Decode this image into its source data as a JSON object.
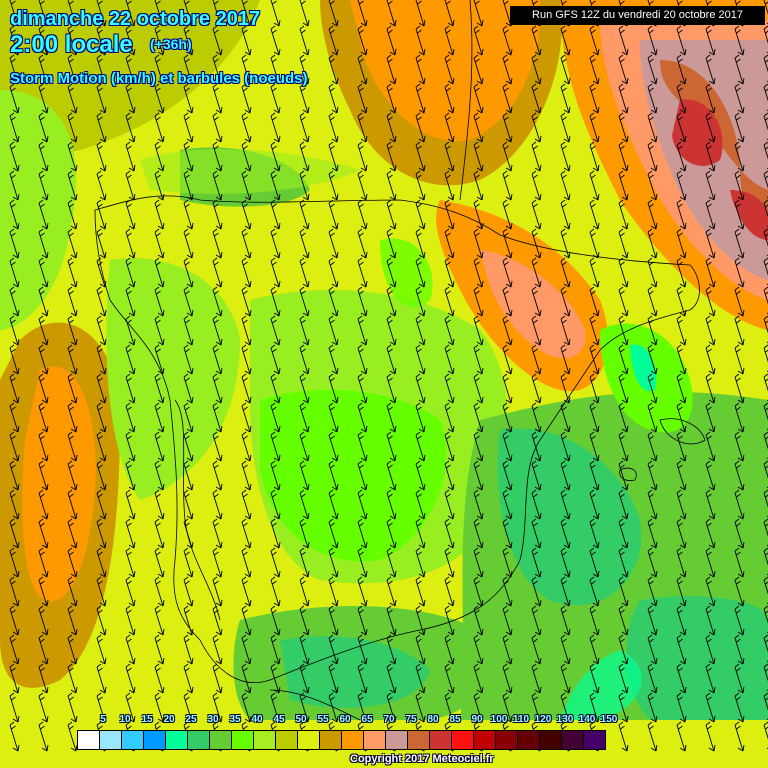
{
  "header": {
    "date": "dimanche 22 octobre 2017",
    "time": "2:00 locale",
    "lead": "(+36h)",
    "parameter": "Storm Motion (km/h) et barbules (noeuds)"
  },
  "run_banner": "Run GFS 12Z du vendredi 20 octobre 2017",
  "legend": {
    "labels": [
      "5",
      "10",
      "15",
      "20",
      "25",
      "30",
      "35",
      "40",
      "45",
      "50",
      "55",
      "60",
      "65",
      "70",
      "75",
      "80",
      "85",
      "90",
      "100",
      "110",
      "120",
      "130",
      "140",
      "150"
    ],
    "colors": [
      "#ffffff",
      "#99e6ff",
      "#33ccff",
      "#0099ff",
      "#00ff99",
      "#33cc66",
      "#66cc33",
      "#66ff00",
      "#a6ee22",
      "#bbcc00",
      "#ddee11",
      "#cc9900",
      "#ff9900",
      "#ff9966",
      "#cc9999",
      "#cc6633",
      "#cc3333",
      "#ff1010",
      "#c00000",
      "#880000",
      "#660000",
      "#440000",
      "#440033",
      "#440066"
    ]
  },
  "copyright": "Copyright 2017 Meteociel.fr",
  "barb_direction": "north-north-west"
}
